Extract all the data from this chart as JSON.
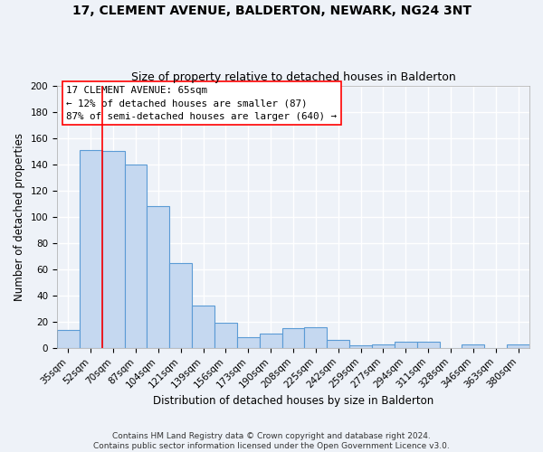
{
  "title": "17, CLEMENT AVENUE, BALDERTON, NEWARK, NG24 3NT",
  "subtitle": "Size of property relative to detached houses in Balderton",
  "xlabel": "Distribution of detached houses by size in Balderton",
  "ylabel": "Number of detached properties",
  "bar_labels": [
    "35sqm",
    "52sqm",
    "70sqm",
    "87sqm",
    "104sqm",
    "121sqm",
    "139sqm",
    "156sqm",
    "173sqm",
    "190sqm",
    "208sqm",
    "225sqm",
    "242sqm",
    "259sqm",
    "277sqm",
    "294sqm",
    "311sqm",
    "328sqm",
    "346sqm",
    "363sqm",
    "380sqm"
  ],
  "bar_values": [
    14,
    151,
    150,
    140,
    108,
    65,
    32,
    19,
    8,
    11,
    15,
    16,
    6,
    2,
    3,
    5,
    5,
    0,
    3,
    0,
    3
  ],
  "bar_color": "#c5d8f0",
  "bar_edge_color": "#5b9bd5",
  "bar_edge_width": 0.8,
  "red_line_index": 1.5,
  "ylim": [
    0,
    200
  ],
  "yticks": [
    0,
    20,
    40,
    60,
    80,
    100,
    120,
    140,
    160,
    180,
    200
  ],
  "annotation_box_text": "17 CLEMENT AVENUE: 65sqm\n← 12% of detached houses are smaller (87)\n87% of semi-detached houses are larger (640) →",
  "footnote": "Contains HM Land Registry data © Crown copyright and database right 2024.\nContains public sector information licensed under the Open Government Licence v3.0.",
  "background_color": "#eef2f8",
  "grid_color": "#ffffff",
  "title_fontsize": 10,
  "subtitle_fontsize": 9,
  "axis_label_fontsize": 8.5,
  "tick_fontsize": 7.5,
  "footnote_fontsize": 6.5
}
